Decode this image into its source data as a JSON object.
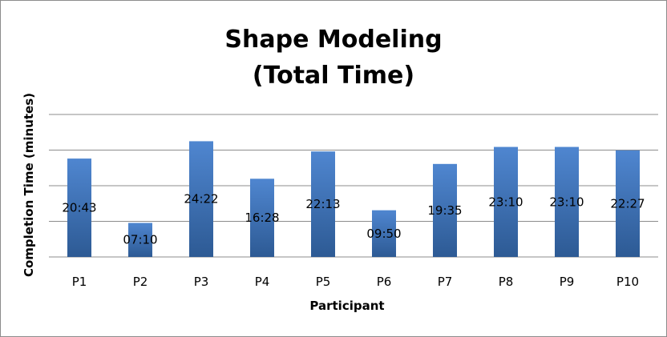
{
  "chart_data": {
    "type": "bar",
    "title_lines": [
      "Shape Modeling",
      "(Total Time)"
    ],
    "xlabel": "Participant",
    "ylabel": "Completion Time (minutes)",
    "categories": [
      "P1",
      "P2",
      "P3",
      "P4",
      "P5",
      "P6",
      "P7",
      "P8",
      "P9",
      "P10"
    ],
    "series": [
      {
        "values": [
          20.717,
          7.167,
          24.367,
          16.467,
          22.217,
          9.833,
          19.583,
          23.167,
          23.167,
          22.45
        ],
        "data_labels": [
          "20:43",
          "07:10",
          "24:22",
          "16:28",
          "22:13",
          "09:50",
          "19:35",
          "23:10",
          "23:10",
          "22:27"
        ]
      }
    ],
    "ylim": [
      0,
      30
    ],
    "gridline_step": 7.5,
    "y_tick_labels_shown": false,
    "grid": true,
    "legend": "none",
    "colors": {
      "bar_top": "#4f86d0",
      "bar_bottom": "#2d5a94",
      "gridline": "#8c8c8c",
      "border": "#8c8c8c"
    }
  }
}
